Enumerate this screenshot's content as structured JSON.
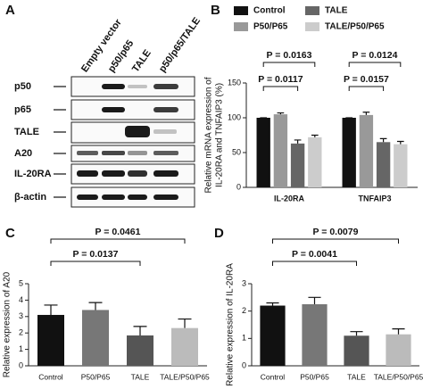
{
  "blot": {
    "panel": "A",
    "lanes": [
      "Empty vector",
      "p50/p65",
      "TALE",
      "p50/p65/TALE"
    ],
    "rows": [
      "p50",
      "p65",
      "TALE",
      "A20",
      "IL-20RA",
      "β-actin"
    ]
  },
  "chart_data": [
    {
      "type": "bar",
      "panel": "B",
      "ylabel": [
        "Relative mRNA expression of",
        "IL-20RA and TNFAIP3 (%)"
      ],
      "categories": [
        "IL-20RA",
        "TNFAIP3"
      ],
      "series": [
        {
          "name": "Control",
          "color": "#111111",
          "values": [
            100,
            100
          ],
          "errors": [
            0,
            0
          ]
        },
        {
          "name": "P50/P65",
          "color": "#999999",
          "values": [
            105,
            104
          ],
          "errors": [
            2,
            4
          ]
        },
        {
          "name": "TALE",
          "color": "#666666",
          "values": [
            63,
            65
          ],
          "errors": [
            5,
            5
          ]
        },
        {
          "name": "TALE/P50/P65",
          "color": "#cccccc",
          "values": [
            72,
            62
          ],
          "errors": [
            3,
            4
          ]
        }
      ],
      "ylim": [
        0,
        150
      ],
      "yticks": [
        0,
        50,
        100,
        150
      ],
      "brackets": [
        {
          "label": "P = 0.0163",
          "category": "IL-20RA",
          "between": [
            "Control",
            "TALE/P50/P65"
          ]
        },
        {
          "label": "P = 0.0117",
          "category": "IL-20RA",
          "between": [
            "Control",
            "TALE"
          ]
        },
        {
          "label": "P = 0.0124",
          "category": "TNFAIP3",
          "between": [
            "Control",
            "TALE/P50/P65"
          ]
        },
        {
          "label": "P = 0.0157",
          "category": "TNFAIP3",
          "between": [
            "Control",
            "TALE"
          ]
        }
      ]
    },
    {
      "type": "bar",
      "panel": "C",
      "ylabel": [
        "Relative expression of A20"
      ],
      "categories": [
        "Control",
        "P50/P65",
        "TALE",
        "TALE/P50/P65"
      ],
      "values": [
        3.1,
        3.4,
        1.85,
        2.3
      ],
      "errors": [
        0.6,
        0.45,
        0.55,
        0.55
      ],
      "colors": [
        "#111111",
        "#777777",
        "#555555",
        "#bbbbbb"
      ],
      "ylim": [
        0,
        5
      ],
      "yticks": [
        0,
        1,
        2,
        3,
        4,
        5
      ],
      "brackets": [
        {
          "label": "P = 0.0461",
          "between": [
            "Control",
            "TALE/P50/P65"
          ]
        },
        {
          "label": "P = 0.0137",
          "between": [
            "Control",
            "TALE"
          ]
        }
      ]
    },
    {
      "type": "bar",
      "panel": "D",
      "ylabel": [
        "Relative expression of IL-20RA"
      ],
      "categories": [
        "Control",
        "P50/P65",
        "TALE",
        "TALE/P50/P65"
      ],
      "values": [
        2.2,
        2.25,
        1.1,
        1.15
      ],
      "errors": [
        0.1,
        0.25,
        0.15,
        0.2
      ],
      "colors": [
        "#111111",
        "#777777",
        "#555555",
        "#bbbbbb"
      ],
      "ylim": [
        0,
        3
      ],
      "yticks": [
        0,
        1,
        2,
        3
      ],
      "brackets": [
        {
          "label": "P = 0.0079",
          "between": [
            "Control",
            "TALE/P50/P65"
          ]
        },
        {
          "label": "P = 0.0041",
          "between": [
            "Control",
            "TALE"
          ]
        }
      ]
    }
  ]
}
